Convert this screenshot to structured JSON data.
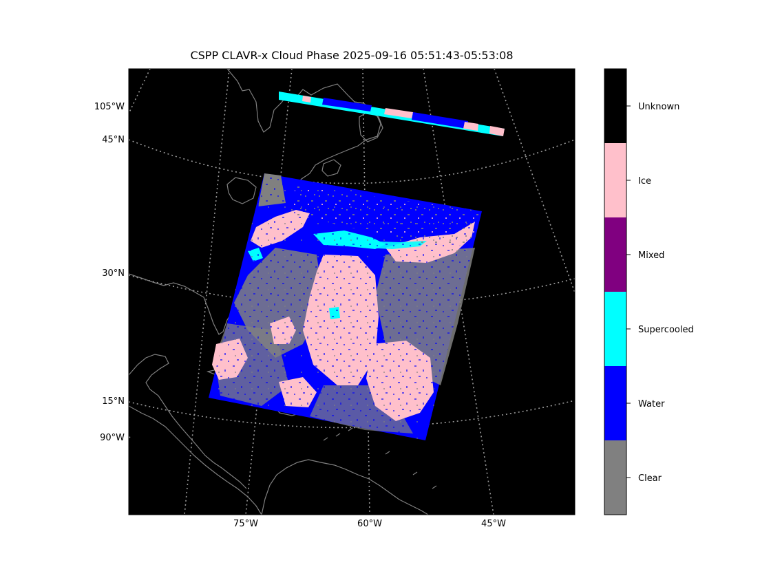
{
  "title": "CSPP CLAVR-x Cloud Phase 2025-09-16 05:51:43-05:53:08",
  "colors": {
    "background": "#000000",
    "coast": "#808080",
    "grid": "#9a9a9a",
    "Clear": "#808080",
    "Water": "#0000ff",
    "Supercooled": "#00ffff",
    "Mixed": "#800080",
    "Ice": "#ffc0cb",
    "Unknown": "#000000"
  },
  "map": {
    "left_labels": [
      "105°W",
      "45°N",
      "30°N",
      "15°N",
      "90°W"
    ],
    "bottom_labels": [
      "75°W",
      "60°W",
      "45°W"
    ]
  },
  "colorbar": {
    "categories": [
      "Clear",
      "Water",
      "Supercooled",
      "Mixed",
      "Ice",
      "Unknown"
    ]
  }
}
